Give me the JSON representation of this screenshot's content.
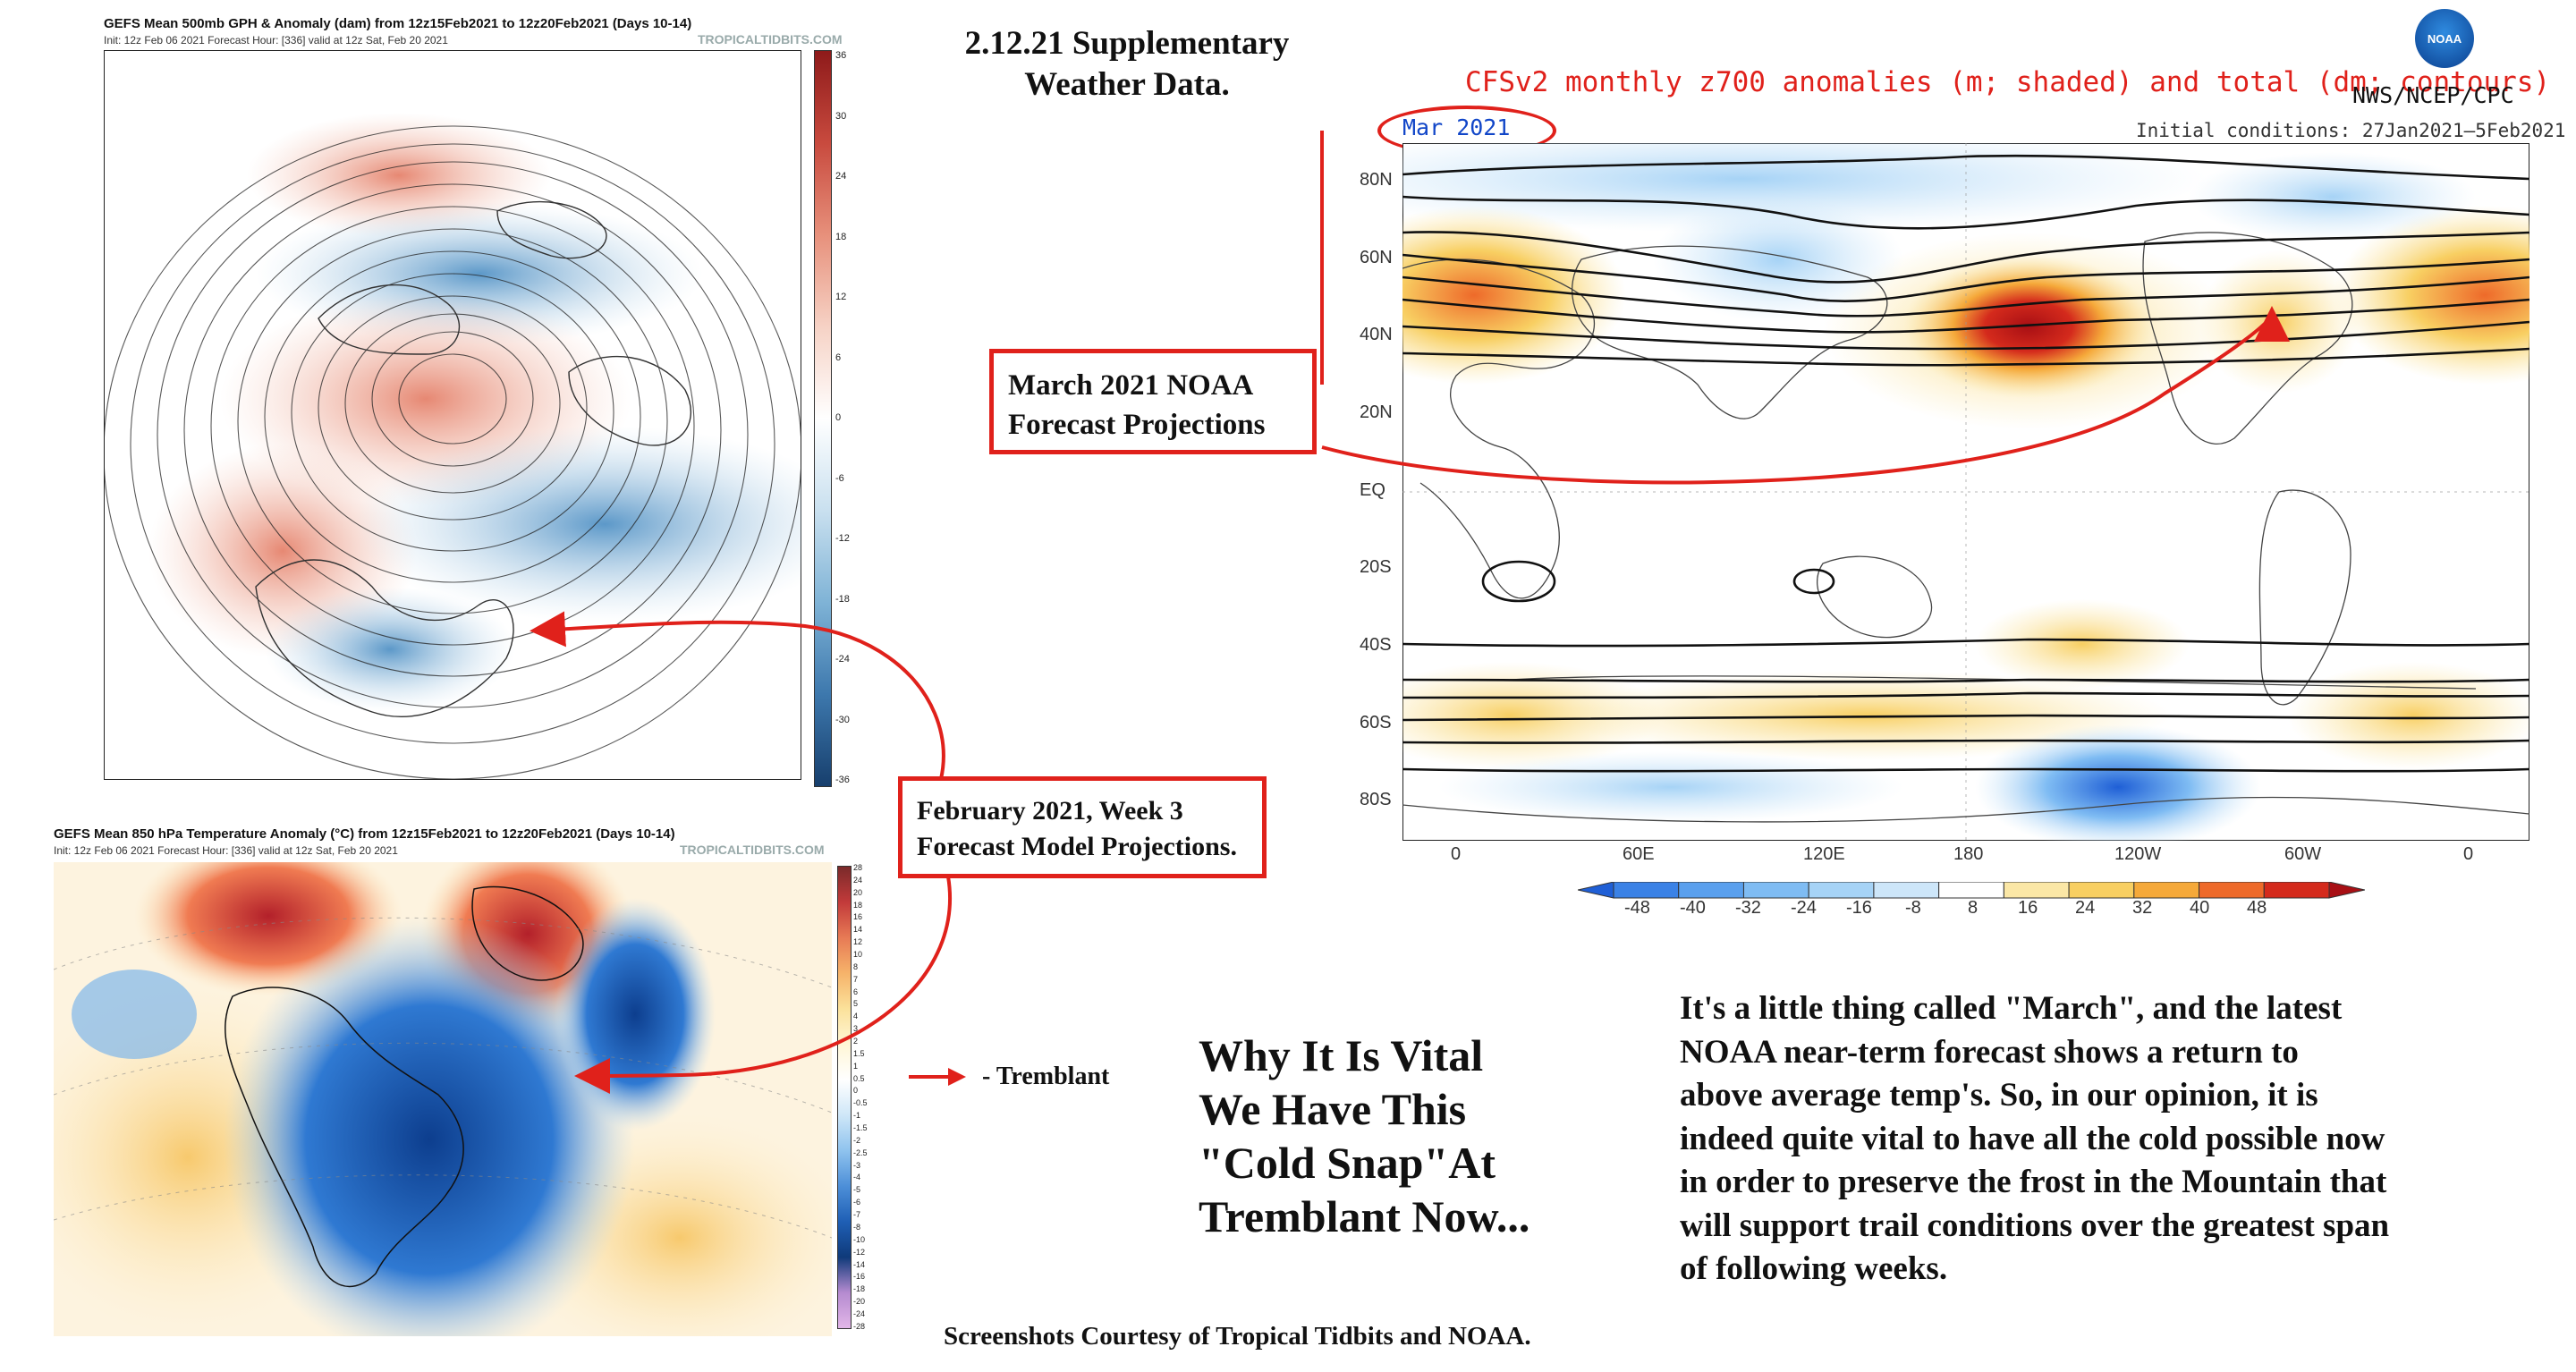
{
  "gefs500": {
    "title": "GEFS Mean 500mb GPH & Anomaly (dam) from 12z15Feb2021 to 12z20Feb2021 (Days 10-14)",
    "subtitle": "Init: 12z Feb 06 2021   Forecast Hour: [336]   valid at 12z Sat, Feb 20 2021",
    "credit": "TROPICALTIDBITS.COM",
    "colorbar_ticks": [
      "36",
      "30",
      "24",
      "18",
      "12",
      "6",
      "0",
      "-6",
      "-12",
      "-18",
      "-24",
      "-30",
      "-36"
    ]
  },
  "gefs850": {
    "title": "GEFS Mean 850 hPa Temperature Anomaly (°C) from 12z15Feb2021 to 12z20Feb2021 (Days 10-14)",
    "subtitle": "Init: 12z Feb 06 2021   Forecast Hour: [336]   valid at 12z Sat, Feb 20 2021",
    "credit": "TROPICALTIDBITS.COM",
    "colorbar_ticks": [
      "28",
      "24",
      "20",
      "18",
      "16",
      "14",
      "12",
      "10",
      "8",
      "7",
      "6",
      "5",
      "4",
      "3",
      "2",
      "1.5",
      "1",
      "0.5",
      "0",
      "-0.5",
      "-1",
      "-1.5",
      "-2",
      "-2.5",
      "-3",
      "-4",
      "-5",
      "-6",
      "-7",
      "-8",
      "-10",
      "-12",
      "-14",
      "-16",
      "-18",
      "-20",
      "-24",
      "-28"
    ]
  },
  "header": {
    "line1": "2.12.21 Supplementary",
    "line2": "Weather Data."
  },
  "cfs": {
    "title": "CFSv2 monthly z700 anomalies (m; shaded) and total (dm; contours)",
    "agency": "NWS/NCEP/CPC",
    "logo_text": "NOAA",
    "month_label": "Mar 2021",
    "init": "Initial conditions: 27Jan2021–5Feb2021",
    "lat_labels": [
      "80N",
      "60N",
      "40N",
      "20N",
      "EQ",
      "20S",
      "40S",
      "60S",
      "80S"
    ],
    "lon_labels": [
      "0",
      "60E",
      "120E",
      "180",
      "120W",
      "60W",
      "0"
    ],
    "colorbar_labels": [
      "-48",
      "-40",
      "-32",
      "-24",
      "-16",
      "-8",
      "8",
      "16",
      "24",
      "32",
      "40",
      "48"
    ],
    "colorbar_colors": [
      "#1f5fd6",
      "#3b82e6",
      "#5aa0ee",
      "#7fbcf3",
      "#a6d3f6",
      "#cde6f9",
      "#ffffff",
      "#fbe7a6",
      "#f8cf62",
      "#f5a93a",
      "#ee6a2a",
      "#d42a1c",
      "#a80f14"
    ]
  },
  "callouts": {
    "march_line1": "March 2021 NOAA",
    "march_line2": "Forecast Projections",
    "feb_line1": "February 2021, Week 3",
    "feb_line2": "Forecast Model Projections."
  },
  "legend": {
    "tremblant": "- Tremblant"
  },
  "headline": {
    "line1": "Why It Is Vital",
    "line2": "We Have This",
    "line3": "\"Cold Snap\"At",
    "line4": "Tremblant Now..."
  },
  "body": {
    "line1": "It's a little thing called \"March\", and the latest",
    "line2": "NOAA near-term forecast shows a return to",
    "line3": "above average temp's. So, in our opinion, it is",
    "line4": "indeed quite vital to have all the cold possible now",
    "line5": "in order to preserve the frost in the Mountain that",
    "line6": "will support trail conditions over the greatest span",
    "line7": "of following weeks."
  },
  "footer": {
    "credit": "Screenshots Courtesy of Tropical Tidbits and NOAA."
  }
}
